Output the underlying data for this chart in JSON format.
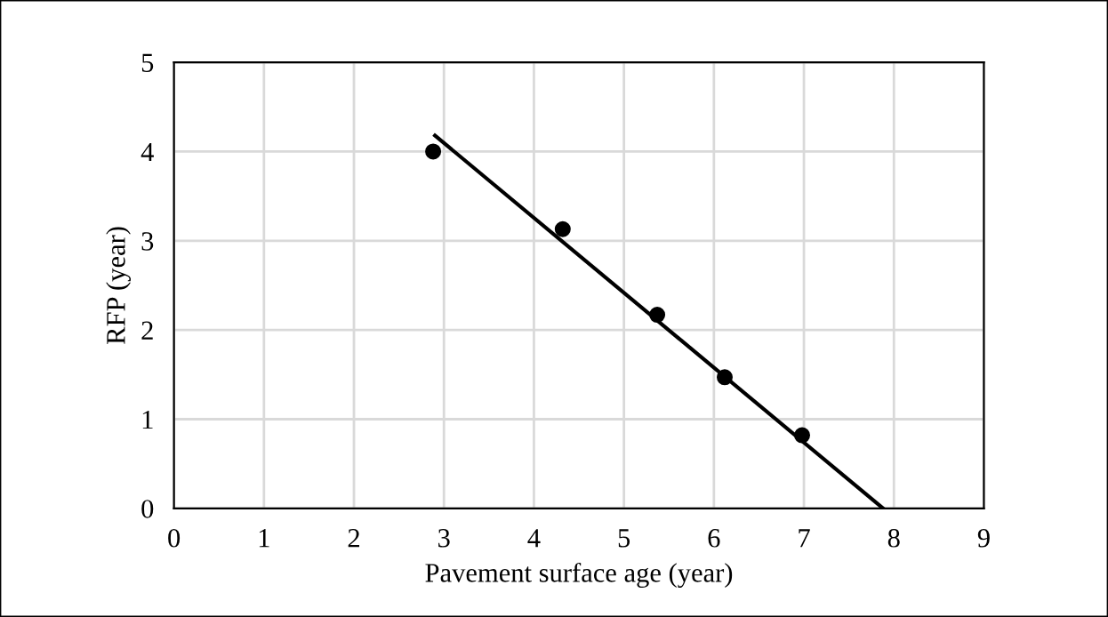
{
  "chart_data": {
    "type": "scatter",
    "xlabel": "Pavement surface age (year)",
    "ylabel": "RFP (year)",
    "xlim": [
      0,
      9
    ],
    "xticks": [
      0,
      1,
      2,
      3,
      4,
      5,
      6,
      7,
      8,
      9
    ],
    "ylim": [
      0,
      5
    ],
    "yticks": [
      0,
      1,
      2,
      3,
      4,
      5
    ],
    "grid": true,
    "marker": "circle",
    "series": [
      {
        "color": "#000000",
        "x": [
          2.88,
          4.32,
          5.37,
          6.12,
          6.98
        ],
        "values": [
          4.0,
          3.13,
          2.17,
          1.47,
          0.82
        ]
      },
      {
        "type": "line",
        "color": "#000000",
        "x": [
          2.9,
          7.88
        ],
        "values": [
          4.18,
          0
        ],
        "marker": "none"
      }
    ]
  }
}
